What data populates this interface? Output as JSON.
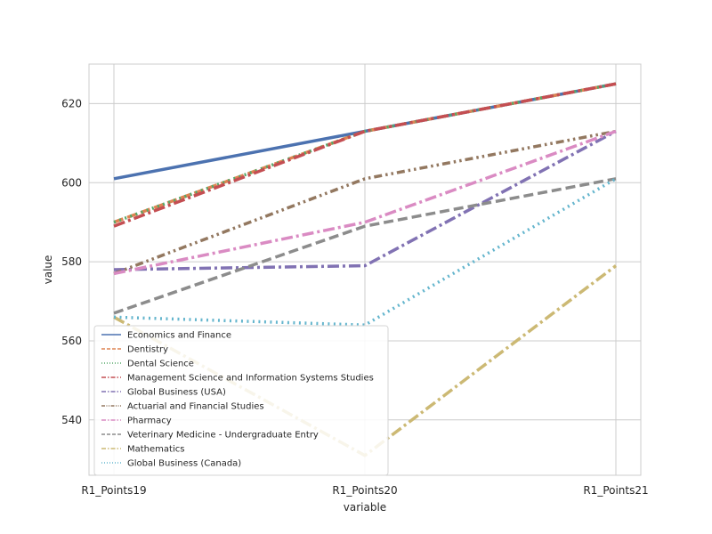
{
  "chart_data": {
    "type": "line",
    "categories": [
      "R1_Points19",
      "R1_Points20",
      "R1_Points21"
    ],
    "xlabel": "variable",
    "ylabel": "value",
    "ylim": [
      526,
      630
    ],
    "yticks": [
      540,
      560,
      580,
      600,
      620
    ],
    "grid": true,
    "legend_position": "lower-left",
    "series": [
      {
        "name": "Economics and Finance",
        "values": [
          601,
          613,
          625
        ],
        "color": "#4c72b0",
        "dash": "solid"
      },
      {
        "name": "Dentistry",
        "values": [
          590,
          613,
          625
        ],
        "color": "#dd8452",
        "dash": "dashed"
      },
      {
        "name": "Dental Science",
        "values": [
          590,
          613,
          625
        ],
        "color": "#55a868",
        "dash": "dotted"
      },
      {
        "name": "Management Science and Information Systems Studies",
        "values": [
          589,
          613,
          625
        ],
        "color": "#c44e52",
        "dash": "dashdot"
      },
      {
        "name": "Global Business (USA)",
        "values": [
          578,
          579,
          613
        ],
        "color": "#8172b3",
        "dash": "dashdot"
      },
      {
        "name": "Actuarial and Financial Studies",
        "values": [
          577,
          601,
          613
        ],
        "color": "#937860",
        "dash": "dashdotdot"
      },
      {
        "name": "Pharmacy",
        "values": [
          577,
          590,
          613
        ],
        "color": "#da8bc3",
        "dash": "dashdot"
      },
      {
        "name": "Veterinary Medicine - Undergraduate Entry",
        "values": [
          567,
          589,
          601
        ],
        "color": "#8c8c8c",
        "dash": "dashed"
      },
      {
        "name": "Mathematics",
        "values": [
          566,
          531,
          579
        ],
        "color": "#ccb974",
        "dash": "dashdot"
      },
      {
        "name": "Global Business (Canada)",
        "values": [
          566,
          564,
          601
        ],
        "color": "#64b5cd",
        "dash": "dotted"
      }
    ]
  }
}
